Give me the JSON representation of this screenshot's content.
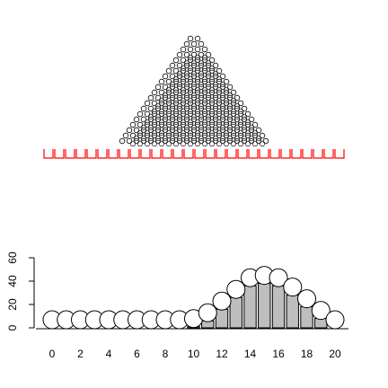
{
  "chart_data": {
    "type": "bar",
    "description_visible": "Galton board style: triangle of small circles (pegs) above a row of red cups, and a histogram of bin counts below with circles drawn at each bar top",
    "x": [
      0,
      1,
      2,
      3,
      4,
      5,
      6,
      7,
      8,
      9,
      10,
      11,
      12,
      13,
      14,
      15,
      16,
      17,
      18,
      19,
      20
    ],
    "values": [
      0,
      0,
      0,
      0,
      0,
      0,
      0,
      0,
      0,
      0,
      1,
      6,
      16,
      26,
      36,
      38,
      36,
      28,
      18,
      8,
      0
    ],
    "xlim": [
      0,
      20
    ],
    "ylim": [
      0,
      60
    ],
    "x_ticks": [
      "0",
      "2",
      "4",
      "6",
      "8",
      "10",
      "12",
      "14",
      "16",
      "18",
      "20"
    ],
    "y_ticks": [
      "0",
      "20",
      "40",
      "60"
    ],
    "peg_rows": 20,
    "cups": 28,
    "colors": {
      "cups": "#ff0000",
      "bars": "#bebebe",
      "stroke": "#000000"
    },
    "title": "",
    "xlabel": "",
    "ylabel": ""
  }
}
